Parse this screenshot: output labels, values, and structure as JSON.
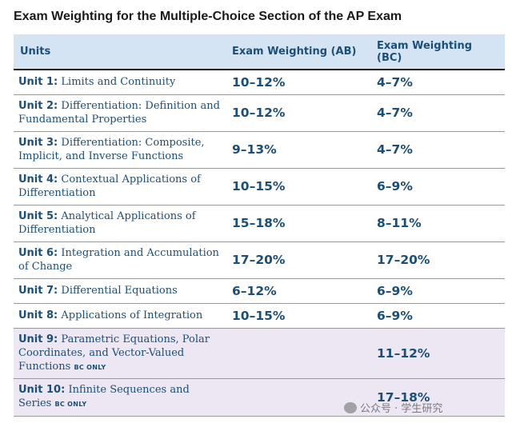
{
  "title": "Exam Weighting for the Multiple-Choice Section of the AP Exam",
  "headers": {
    "units": "Units",
    "ab": "Exam Weighting (AB)",
    "bc": "Exam Weighting (BC)"
  },
  "rows": [
    {
      "unit": "Unit 1:",
      "name": "Limits and Continuity",
      "tag": "",
      "ab": "10–12%",
      "bc": "4–7%"
    },
    {
      "unit": "Unit 2:",
      "name": "Differentiation: Definition and Fundamental Properties",
      "tag": "",
      "ab": "10–12%",
      "bc": "4–7%"
    },
    {
      "unit": "Unit 3:",
      "name": "Differentiation: Composite, Implicit, and Inverse Functions",
      "tag": "",
      "ab": "9–13%",
      "bc": "4–7%"
    },
    {
      "unit": "Unit 4:",
      "name": "Contextual Applications of Differentiation",
      "tag": "",
      "ab": "10–15%",
      "bc": "6–9%"
    },
    {
      "unit": "Unit 5:",
      "name": "Analytical Applications of Differentiation",
      "tag": "",
      "ab": "15–18%",
      "bc": "8–11%"
    },
    {
      "unit": "Unit 6:",
      "name": "Integration and Accumulation of Change",
      "tag": "",
      "ab": "17–20%",
      "bc": "17–20%"
    },
    {
      "unit": "Unit 7:",
      "name": "Differential Equations",
      "tag": "",
      "ab": "6–12%",
      "bc": "6–9%"
    },
    {
      "unit": "Unit 8:",
      "name": "Applications of Integration",
      "tag": "",
      "ab": "10–15%",
      "bc": "6–9%"
    },
    {
      "unit": "Unit 9:",
      "name": "Parametric Equations, Polar Coordinates, and Vector-Valued Functions",
      "tag": "BC ONLY",
      "ab": "",
      "bc": "11–12%"
    },
    {
      "unit": "Unit 10:",
      "name": "Infinite Sequences and Series",
      "tag": "BC ONLY",
      "ab": "",
      "bc": "17–18%"
    }
  ],
  "watermark": "公众号 · 学生研究"
}
